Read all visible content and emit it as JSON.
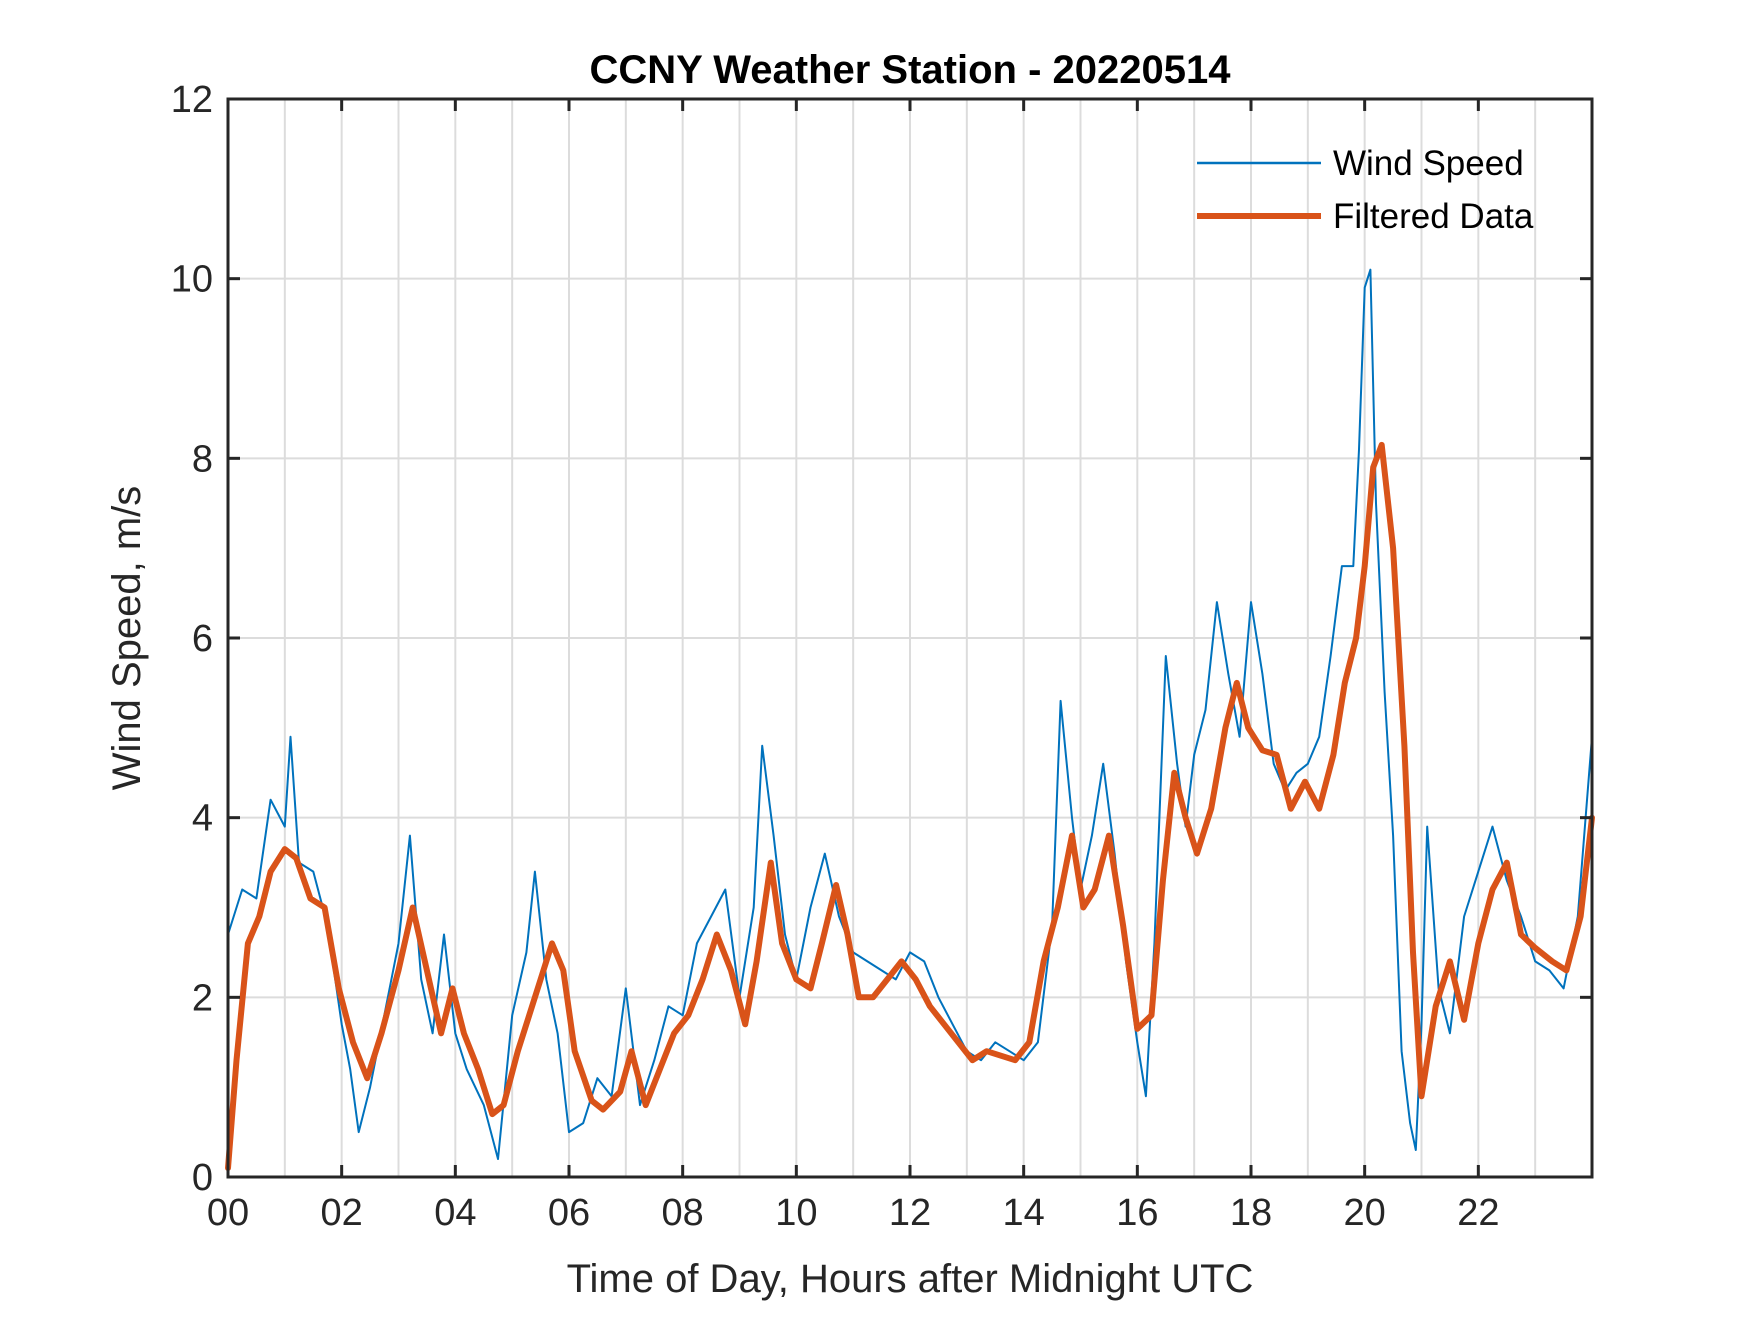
{
  "chart_data": {
    "type": "line",
    "title": "CCNY Weather Station - 20220514",
    "xlabel": "Time of Day, Hours after Midnight UTC",
    "ylabel": "Wind Speed, m/s",
    "xlim": [
      0,
      24
    ],
    "ylim": [
      0,
      12
    ],
    "grid": true,
    "legend_location": "top-right",
    "x_ticks": [
      0,
      2,
      4,
      6,
      8,
      10,
      12,
      14,
      16,
      18,
      20,
      22
    ],
    "x_tick_labels": [
      "00",
      "02",
      "04",
      "06",
      "08",
      "10",
      "12",
      "14",
      "16",
      "18",
      "20",
      "22"
    ],
    "y_ticks": [
      0,
      2,
      4,
      6,
      8,
      10,
      12
    ],
    "y_tick_labels": [
      "0",
      "2",
      "4",
      "6",
      "8",
      "10",
      "12"
    ],
    "x_minor_grid_step": 1,
    "series": [
      {
        "name": "Wind Speed",
        "color": "#0072BD",
        "style": "thin",
        "x": [
          0.0,
          0.25,
          0.5,
          0.75,
          1.0,
          1.1,
          1.25,
          1.5,
          1.75,
          2.0,
          2.15,
          2.3,
          2.5,
          2.75,
          3.0,
          3.2,
          3.4,
          3.6,
          3.8,
          4.0,
          4.2,
          4.5,
          4.75,
          5.0,
          5.25,
          5.4,
          5.6,
          5.8,
          6.0,
          6.25,
          6.5,
          6.75,
          7.0,
          7.25,
          7.5,
          7.75,
          8.0,
          8.25,
          8.5,
          8.75,
          9.0,
          9.25,
          9.4,
          9.6,
          9.8,
          10.0,
          10.25,
          10.5,
          10.75,
          11.0,
          11.25,
          11.5,
          11.75,
          12.0,
          12.25,
          12.5,
          12.75,
          13.0,
          13.25,
          13.5,
          13.75,
          14.0,
          14.25,
          14.5,
          14.65,
          14.85,
          15.0,
          15.2,
          15.4,
          15.6,
          15.8,
          16.0,
          16.15,
          16.3,
          16.5,
          16.7,
          16.85,
          17.0,
          17.2,
          17.4,
          17.6,
          17.8,
          18.0,
          18.2,
          18.4,
          18.6,
          18.8,
          19.0,
          19.2,
          19.4,
          19.6,
          19.8,
          19.9,
          20.0,
          20.1,
          20.2,
          20.35,
          20.5,
          20.65,
          20.8,
          20.9,
          21.0,
          21.1,
          21.3,
          21.5,
          21.75,
          22.0,
          22.25,
          22.5,
          22.75,
          23.0,
          23.25,
          23.5,
          23.75,
          24.0
        ],
        "y": [
          2.7,
          3.2,
          3.1,
          4.2,
          3.9,
          4.9,
          3.5,
          3.4,
          2.8,
          1.7,
          1.2,
          0.5,
          1.0,
          1.8,
          2.6,
          3.8,
          2.2,
          1.6,
          2.7,
          1.6,
          1.2,
          0.8,
          0.2,
          1.8,
          2.5,
          3.4,
          2.2,
          1.6,
          0.5,
          0.6,
          1.1,
          0.9,
          2.1,
          0.8,
          1.3,
          1.9,
          1.8,
          2.6,
          2.9,
          3.2,
          2.0,
          3.0,
          4.8,
          3.8,
          2.7,
          2.2,
          3.0,
          3.6,
          2.9,
          2.5,
          2.4,
          2.3,
          2.2,
          2.5,
          2.4,
          2.0,
          1.7,
          1.4,
          1.3,
          1.5,
          1.4,
          1.3,
          1.5,
          2.8,
          5.3,
          4.0,
          3.2,
          3.8,
          4.6,
          3.6,
          2.4,
          1.5,
          0.9,
          2.6,
          5.8,
          4.6,
          3.9,
          4.7,
          5.2,
          6.4,
          5.6,
          4.9,
          6.4,
          5.6,
          4.6,
          4.3,
          4.5,
          4.6,
          4.9,
          5.8,
          6.8,
          6.8,
          8.1,
          9.9,
          10.1,
          7.5,
          5.4,
          3.8,
          1.4,
          0.6,
          0.3,
          1.7,
          3.9,
          2.1,
          1.6,
          2.9,
          3.4,
          3.9,
          3.3,
          2.9,
          2.4,
          2.3,
          2.1,
          2.9,
          4.9
        ]
      },
      {
        "name": "Filtered Data",
        "color": "#D95319",
        "style": "thick",
        "x": [
          0.0,
          0.15,
          0.35,
          0.55,
          0.75,
          1.0,
          1.2,
          1.45,
          1.7,
          1.95,
          2.2,
          2.45,
          2.7,
          3.0,
          3.25,
          3.5,
          3.75,
          3.95,
          4.15,
          4.4,
          4.65,
          4.85,
          5.1,
          5.3,
          5.5,
          5.7,
          5.9,
          6.1,
          6.4,
          6.6,
          6.9,
          7.1,
          7.35,
          7.6,
          7.85,
          8.1,
          8.35,
          8.6,
          8.85,
          9.1,
          9.3,
          9.55,
          9.75,
          10.0,
          10.25,
          10.45,
          10.7,
          10.9,
          11.1,
          11.35,
          11.6,
          11.85,
          12.1,
          12.35,
          12.6,
          12.85,
          13.1,
          13.35,
          13.6,
          13.85,
          14.1,
          14.35,
          14.6,
          14.85,
          15.05,
          15.25,
          15.5,
          15.75,
          16.0,
          16.25,
          16.45,
          16.65,
          16.85,
          17.05,
          17.3,
          17.55,
          17.75,
          17.95,
          18.2,
          18.45,
          18.7,
          18.95,
          19.2,
          19.45,
          19.65,
          19.85,
          20.0,
          20.15,
          20.3,
          20.5,
          20.7,
          20.85,
          21.0,
          21.25,
          21.5,
          21.75,
          22.0,
          22.25,
          22.5,
          22.75,
          23.0,
          23.3,
          23.55,
          23.8,
          24.0
        ],
        "y": [
          0.1,
          1.3,
          2.6,
          2.9,
          3.4,
          3.65,
          3.55,
          3.1,
          3.0,
          2.1,
          1.5,
          1.1,
          1.6,
          2.3,
          3.0,
          2.3,
          1.6,
          2.1,
          1.6,
          1.2,
          0.7,
          0.8,
          1.4,
          1.8,
          2.2,
          2.6,
          2.3,
          1.4,
          0.85,
          0.75,
          0.95,
          1.4,
          0.8,
          1.2,
          1.6,
          1.8,
          2.2,
          2.7,
          2.3,
          1.7,
          2.4,
          3.5,
          2.6,
          2.2,
          2.1,
          2.6,
          3.25,
          2.7,
          2.0,
          2.0,
          2.2,
          2.4,
          2.2,
          1.9,
          1.7,
          1.5,
          1.3,
          1.4,
          1.35,
          1.3,
          1.5,
          2.4,
          3.0,
          3.8,
          3.0,
          3.2,
          3.8,
          2.8,
          1.65,
          1.8,
          3.3,
          4.5,
          4.0,
          3.6,
          4.1,
          5.0,
          5.5,
          5.0,
          4.75,
          4.7,
          4.1,
          4.4,
          4.1,
          4.7,
          5.5,
          6.0,
          6.8,
          7.9,
          8.15,
          7.0,
          4.8,
          2.5,
          0.9,
          1.9,
          2.4,
          1.75,
          2.6,
          3.2,
          3.5,
          2.7,
          2.55,
          2.4,
          2.3,
          2.9,
          4.0
        ]
      }
    ]
  }
}
